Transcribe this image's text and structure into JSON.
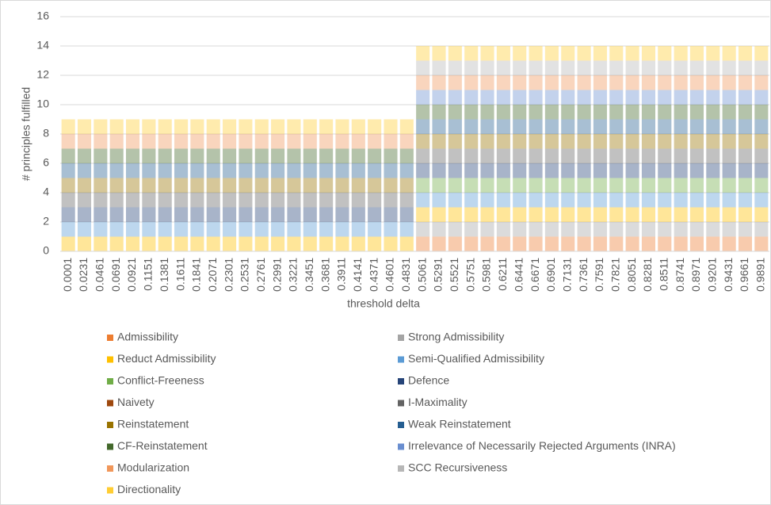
{
  "chart_data": {
    "type": "stacked_bar",
    "categories": [
      "0.0001",
      "0.0231",
      "0.0461",
      "0.0691",
      "0.0921",
      "0.1151",
      "0.1381",
      "0.1611",
      "0.1841",
      "0.2071",
      "0.2301",
      "0.2531",
      "0.2761",
      "0.2991",
      "0.3221",
      "0.3451",
      "0.3681",
      "0.3911",
      "0.4141",
      "0.4371",
      "0.4601",
      "0.4831",
      "0.5061",
      "0.5291",
      "0.5521",
      "0.5751",
      "0.5981",
      "0.6211",
      "0.6441",
      "0.6671",
      "0.6901",
      "0.7131",
      "0.7361",
      "0.7591",
      "0.7821",
      "0.8051",
      "0.8281",
      "0.8511",
      "0.8741",
      "0.8971",
      "0.9201",
      "0.9431",
      "0.9661",
      "0.9891"
    ],
    "x_label": "threshold delta",
    "y_label": "# principles fulfilled",
    "ylim": [
      0,
      16
    ],
    "yticks": [
      0,
      2,
      4,
      6,
      8,
      10,
      12,
      14,
      16
    ],
    "grid": true,
    "series": [
      {
        "name": "Admissibility",
        "color": "#ed7d31",
        "values": [
          0,
          0,
          0,
          0,
          0,
          0,
          0,
          0,
          0,
          0,
          0,
          0,
          0,
          0,
          0,
          0,
          0,
          0,
          0,
          0,
          0,
          0,
          1,
          1,
          1,
          1,
          1,
          1,
          1,
          1,
          1,
          1,
          1,
          1,
          1,
          1,
          1,
          1,
          1,
          1,
          1,
          1,
          1,
          1
        ]
      },
      {
        "name": "Strong Admissibility",
        "color": "#a5a5a5",
        "values": [
          0,
          0,
          0,
          0,
          0,
          0,
          0,
          0,
          0,
          0,
          0,
          0,
          0,
          0,
          0,
          0,
          0,
          0,
          0,
          0,
          0,
          0,
          1,
          1,
          1,
          1,
          1,
          1,
          1,
          1,
          1,
          1,
          1,
          1,
          1,
          1,
          1,
          1,
          1,
          1,
          1,
          1,
          1,
          1
        ]
      },
      {
        "name": "Reduct Admissibility",
        "color": "#ffc000",
        "values": [
          1,
          1,
          1,
          1,
          1,
          1,
          1,
          1,
          1,
          1,
          1,
          1,
          1,
          1,
          1,
          1,
          1,
          1,
          1,
          1,
          1,
          1,
          1,
          1,
          1,
          1,
          1,
          1,
          1,
          1,
          1,
          1,
          1,
          1,
          1,
          1,
          1,
          1,
          1,
          1,
          1,
          1,
          1,
          1
        ]
      },
      {
        "name": "Semi-Qualified Admissibility",
        "color": "#5b9bd5",
        "values": [
          1,
          1,
          1,
          1,
          1,
          1,
          1,
          1,
          1,
          1,
          1,
          1,
          1,
          1,
          1,
          1,
          1,
          1,
          1,
          1,
          1,
          1,
          1,
          1,
          1,
          1,
          1,
          1,
          1,
          1,
          1,
          1,
          1,
          1,
          1,
          1,
          1,
          1,
          1,
          1,
          1,
          1,
          1,
          1
        ]
      },
      {
        "name": "Conflict-Freeness",
        "color": "#70ad47",
        "values": [
          0,
          0,
          0,
          0,
          0,
          0,
          0,
          0,
          0,
          0,
          0,
          0,
          0,
          0,
          0,
          0,
          0,
          0,
          0,
          0,
          0,
          0,
          1,
          1,
          1,
          1,
          1,
          1,
          1,
          1,
          1,
          1,
          1,
          1,
          1,
          1,
          1,
          1,
          1,
          1,
          1,
          1,
          1,
          1
        ]
      },
      {
        "name": "Defence",
        "color": "#264478",
        "values": [
          1,
          1,
          1,
          1,
          1,
          1,
          1,
          1,
          1,
          1,
          1,
          1,
          1,
          1,
          1,
          1,
          1,
          1,
          1,
          1,
          1,
          1,
          1,
          1,
          1,
          1,
          1,
          1,
          1,
          1,
          1,
          1,
          1,
          1,
          1,
          1,
          1,
          1,
          1,
          1,
          1,
          1,
          1,
          1
        ]
      },
      {
        "name": "Naivety",
        "color": "#9e480e",
        "values": [
          0,
          0,
          0,
          0,
          0,
          0,
          0,
          0,
          0,
          0,
          0,
          0,
          0,
          0,
          0,
          0,
          0,
          0,
          0,
          0,
          0,
          0,
          0,
          0,
          0,
          0,
          0,
          0,
          0,
          0,
          0,
          0,
          0,
          0,
          0,
          0,
          0,
          0,
          0,
          0,
          0,
          0,
          0,
          0
        ]
      },
      {
        "name": "I-Maximality",
        "color": "#636363",
        "values": [
          1,
          1,
          1,
          1,
          1,
          1,
          1,
          1,
          1,
          1,
          1,
          1,
          1,
          1,
          1,
          1,
          1,
          1,
          1,
          1,
          1,
          1,
          1,
          1,
          1,
          1,
          1,
          1,
          1,
          1,
          1,
          1,
          1,
          1,
          1,
          1,
          1,
          1,
          1,
          1,
          1,
          1,
          1,
          1
        ]
      },
      {
        "name": "Reinstatement",
        "color": "#997300",
        "values": [
          1,
          1,
          1,
          1,
          1,
          1,
          1,
          1,
          1,
          1,
          1,
          1,
          1,
          1,
          1,
          1,
          1,
          1,
          1,
          1,
          1,
          1,
          1,
          1,
          1,
          1,
          1,
          1,
          1,
          1,
          1,
          1,
          1,
          1,
          1,
          1,
          1,
          1,
          1,
          1,
          1,
          1,
          1,
          1
        ]
      },
      {
        "name": "Weak Reinstatement",
        "color": "#255e91",
        "values": [
          1,
          1,
          1,
          1,
          1,
          1,
          1,
          1,
          1,
          1,
          1,
          1,
          1,
          1,
          1,
          1,
          1,
          1,
          1,
          1,
          1,
          1,
          1,
          1,
          1,
          1,
          1,
          1,
          1,
          1,
          1,
          1,
          1,
          1,
          1,
          1,
          1,
          1,
          1,
          1,
          1,
          1,
          1,
          1
        ]
      },
      {
        "name": "CF-Reinstatement",
        "color": "#43682b",
        "values": [
          1,
          1,
          1,
          1,
          1,
          1,
          1,
          1,
          1,
          1,
          1,
          1,
          1,
          1,
          1,
          1,
          1,
          1,
          1,
          1,
          1,
          1,
          1,
          1,
          1,
          1,
          1,
          1,
          1,
          1,
          1,
          1,
          1,
          1,
          1,
          1,
          1,
          1,
          1,
          1,
          1,
          1,
          1,
          1
        ]
      },
      {
        "name": "Irrelevance of Necessarily Rejected Arguments (INRA)",
        "color": "#698ed0",
        "values": [
          0,
          0,
          0,
          0,
          0,
          0,
          0,
          0,
          0,
          0,
          0,
          0,
          0,
          0,
          0,
          0,
          0,
          0,
          0,
          0,
          0,
          0,
          1,
          1,
          1,
          1,
          1,
          1,
          1,
          1,
          1,
          1,
          1,
          1,
          1,
          1,
          1,
          1,
          1,
          1,
          1,
          1,
          1,
          1
        ]
      },
      {
        "name": "Modularization",
        "color": "#f1975a",
        "values": [
          1,
          1,
          1,
          1,
          1,
          1,
          1,
          1,
          1,
          1,
          1,
          1,
          1,
          1,
          1,
          1,
          1,
          1,
          1,
          1,
          1,
          1,
          1,
          1,
          1,
          1,
          1,
          1,
          1,
          1,
          1,
          1,
          1,
          1,
          1,
          1,
          1,
          1,
          1,
          1,
          1,
          1,
          1,
          1
        ]
      },
      {
        "name": "SCC Recursiveness",
        "color": "#b7b7b7",
        "values": [
          0,
          0,
          0,
          0,
          0,
          0,
          0,
          0,
          0,
          0,
          0,
          0,
          0,
          0,
          0,
          0,
          0,
          0,
          0,
          0,
          0,
          0,
          1,
          1,
          1,
          1,
          1,
          1,
          1,
          1,
          1,
          1,
          1,
          1,
          1,
          1,
          1,
          1,
          1,
          1,
          1,
          1,
          1,
          1
        ]
      },
      {
        "name": "Directionality",
        "color": "#ffcd33",
        "values": [
          1,
          1,
          1,
          1,
          1,
          1,
          1,
          1,
          1,
          1,
          1,
          1,
          1,
          1,
          1,
          1,
          1,
          1,
          1,
          1,
          1,
          1,
          1,
          1,
          1,
          1,
          1,
          1,
          1,
          1,
          1,
          1,
          1,
          1,
          1,
          1,
          1,
          1,
          1,
          1,
          1,
          1,
          1,
          1
        ]
      }
    ]
  }
}
